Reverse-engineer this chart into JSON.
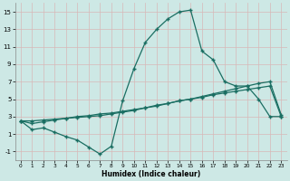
{
  "xlabel": "Humidex (Indice chaleur)",
  "bg_color": "#cde8e5",
  "grid_color": "#b8d8d4",
  "line_color": "#1a6e62",
  "xlim": [
    -0.5,
    23.5
  ],
  "ylim": [
    -2.0,
    16.0
  ],
  "yticks": [
    -1,
    1,
    3,
    5,
    7,
    9,
    11,
    13,
    15
  ],
  "xticks": [
    0,
    1,
    2,
    3,
    4,
    5,
    6,
    7,
    8,
    9,
    10,
    11,
    12,
    13,
    14,
    15,
    16,
    17,
    18,
    19,
    20,
    21,
    22,
    23
  ],
  "line1_x": [
    0,
    1,
    2,
    3,
    4,
    5,
    6,
    7,
    8,
    9,
    10,
    11,
    12,
    13,
    14,
    15,
    16,
    17,
    18,
    19,
    20,
    21,
    22,
    23
  ],
  "line1_y": [
    2.5,
    1.5,
    1.7,
    1.2,
    0.7,
    0.3,
    -0.5,
    -1.3,
    -0.4,
    4.8,
    8.5,
    11.5,
    13.0,
    14.2,
    15.0,
    15.2,
    10.5,
    9.5,
    7.0,
    6.5,
    6.5,
    5.0,
    3.0,
    3.0
  ],
  "line2_x": [
    0,
    1,
    2,
    3,
    4,
    5,
    6,
    7,
    8,
    9,
    10,
    11,
    12,
    13,
    14,
    15,
    16,
    17,
    18,
    19,
    20,
    21,
    22,
    23
  ],
  "line2_y": [
    2.5,
    2.5,
    2.6,
    2.7,
    2.8,
    2.9,
    3.0,
    3.1,
    3.3,
    3.5,
    3.7,
    4.0,
    4.2,
    4.5,
    4.8,
    5.0,
    5.3,
    5.6,
    5.9,
    6.2,
    6.5,
    6.8,
    7.0,
    3.2
  ],
  "line3_x": [
    0,
    1,
    2,
    3,
    4,
    5,
    6,
    7,
    8,
    9,
    10,
    11,
    12,
    13,
    14,
    15,
    16,
    17,
    18,
    19,
    20,
    21,
    22,
    23
  ],
  "line3_y": [
    2.5,
    2.2,
    2.4,
    2.6,
    2.8,
    3.0,
    3.1,
    3.3,
    3.4,
    3.6,
    3.8,
    4.0,
    4.3,
    4.5,
    4.8,
    5.0,
    5.2,
    5.5,
    5.7,
    5.9,
    6.1,
    6.3,
    6.5,
    3.0
  ],
  "xlabel_fontsize": 5.5,
  "tick_fontsize_x": 4.2,
  "tick_fontsize_y": 5.0
}
